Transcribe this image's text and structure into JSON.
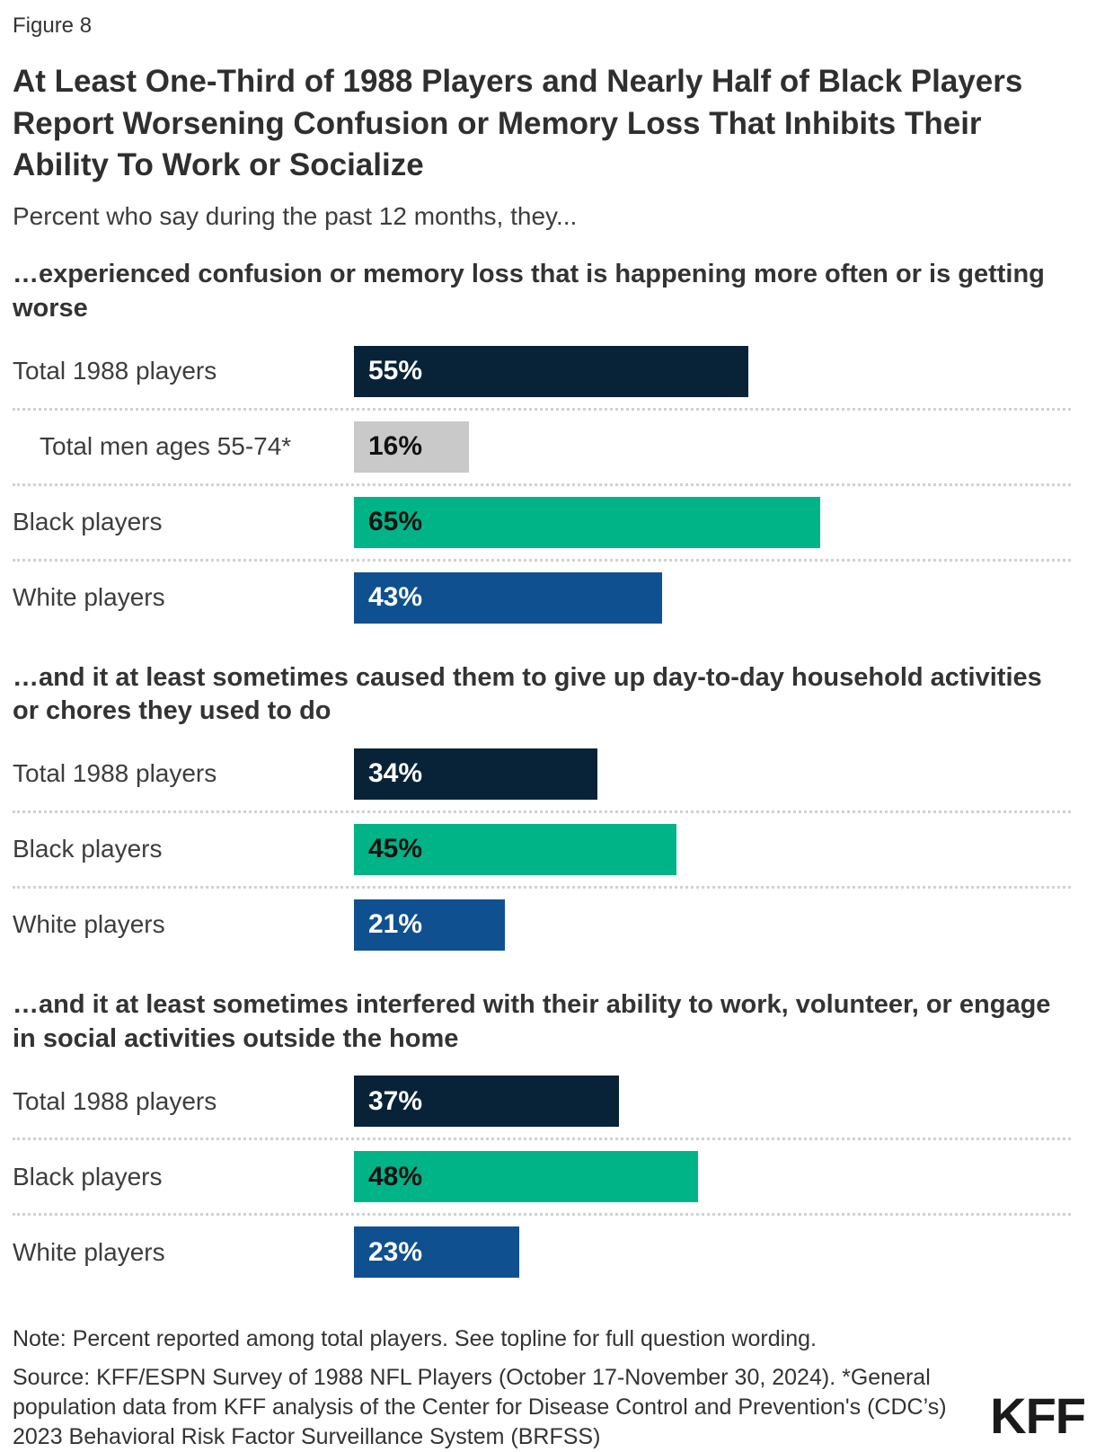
{
  "figure_label": "Figure 8",
  "title": "At Least One-Third of 1988 Players and Nearly Half of Black Players Report Worsening Confusion or Memory Loss That Inhibits Their Ability To Work or Socialize",
  "subtitle": "Percent who say during the past 12 months, they...",
  "note": "Note: Percent reported among total players. See topline for full question wording.",
  "source": "Source: KFF/ESPN Survey of 1988 NFL Players (October 17-November 30, 2024). *General population data from KFF analysis of the Center for Disease Control and Prevention's (CDC’s) 2023 Behavioral Risk Factor Surveillance System (BRFSS)",
  "logo_text": "KFF",
  "colors": {
    "navy": "#082338",
    "gray": "#c9c9c9",
    "green": "#00b488",
    "blue": "#0f5090",
    "value_light": "#ffffff",
    "value_dark": "#111111",
    "separator": "#d1d1d1"
  },
  "chart_data": {
    "type": "bar",
    "orientation": "horizontal",
    "unit": "%",
    "xlim": [
      0,
      100
    ],
    "grid": "off",
    "legend": "none",
    "sections": [
      {
        "heading": "…experienced confusion or memory loss that is happening more often or is getting worse",
        "rows": [
          {
            "label": "Total 1988 players",
            "value": 55,
            "display": "55%",
            "color_key": "navy",
            "text": "light",
            "indent": false
          },
          {
            "label": "Total men ages 55-74*",
            "value": 16,
            "display": "16%",
            "color_key": "gray",
            "text": "dark",
            "indent": true
          },
          {
            "label": "Black players",
            "value": 65,
            "display": "65%",
            "color_key": "green",
            "text": "dark",
            "indent": false
          },
          {
            "label": "White players",
            "value": 43,
            "display": "43%",
            "color_key": "blue",
            "text": "light",
            "indent": false
          }
        ]
      },
      {
        "heading": "…and it at least sometimes caused them to give up day-to-day household activities or chores they used to do",
        "rows": [
          {
            "label": "Total 1988 players",
            "value": 34,
            "display": "34%",
            "color_key": "navy",
            "text": "light",
            "indent": false
          },
          {
            "label": "Black players",
            "value": 45,
            "display": "45%",
            "color_key": "green",
            "text": "dark",
            "indent": false
          },
          {
            "label": "White players",
            "value": 21,
            "display": "21%",
            "color_key": "blue",
            "text": "light",
            "indent": false
          }
        ]
      },
      {
        "heading": "…and it at least sometimes interfered with their ability to work, volunteer, or engage in social activities outside the home",
        "rows": [
          {
            "label": "Total 1988 players",
            "value": 37,
            "display": "37%",
            "color_key": "navy",
            "text": "light",
            "indent": false
          },
          {
            "label": "Black players",
            "value": 48,
            "display": "48%",
            "color_key": "green",
            "text": "dark",
            "indent": false
          },
          {
            "label": "White players",
            "value": 23,
            "display": "23%",
            "color_key": "blue",
            "text": "light",
            "indent": false
          }
        ]
      }
    ]
  }
}
